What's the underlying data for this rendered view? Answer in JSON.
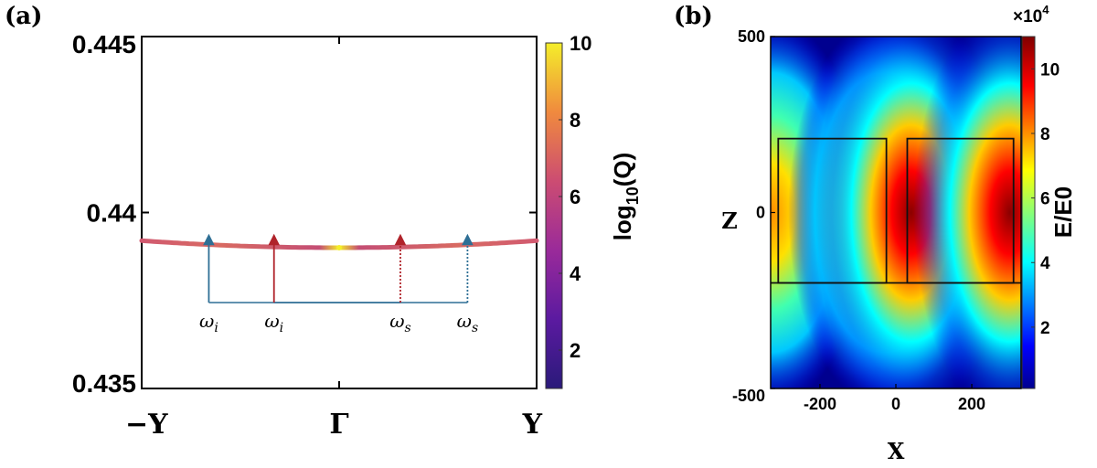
{
  "chart_data": [
    {
      "panel": "(a)",
      "type": "line",
      "x_ticks": [
        "−Y",
        "Γ",
        "Y"
      ],
      "ylim": [
        0.435,
        0.445
      ],
      "y_ticks": [
        "0.435",
        "0.44",
        "0.445"
      ],
      "y_tick_values": [
        0.435,
        0.44,
        0.445
      ],
      "series": [
        {
          "x": [
            -1,
            -0.5,
            0,
            0.5,
            1
          ],
          "y": [
            0.4392,
            0.43915,
            0.439,
            0.43915,
            0.4392
          ]
        }
      ],
      "colorbar": {
        "label": "log10(Q)",
        "label_main": "log",
        "label_sub": "10",
        "label_tail": "(Q)",
        "range": [
          1,
          10
        ],
        "ticks": [
          "2",
          "4",
          "6",
          "8",
          "10"
        ],
        "tick_values": [
          2,
          4,
          6,
          8,
          10
        ],
        "colormap": "plasma"
      },
      "annotations": [
        {
          "symbol": "ω",
          "sub": "i",
          "x": -0.66,
          "arrow_color": "#2e6f95",
          "style": "solid"
        },
        {
          "symbol": "ω",
          "sub": "i",
          "x": -0.33,
          "arrow_color": "#b0232a",
          "style": "solid"
        },
        {
          "symbol": "ω",
          "sub": "s",
          "x": 0.31,
          "arrow_color": "#b0232a",
          "style": "dotted"
        },
        {
          "symbol": "ω",
          "sub": "s",
          "x": 0.65,
          "arrow_color": "#2e6f95",
          "style": "dotted"
        }
      ]
    },
    {
      "panel": "(b)",
      "type": "heatmap",
      "xlabel": "X",
      "ylabel": "Z",
      "xlim": [
        -330,
        330
      ],
      "ylim": [
        -500,
        500
      ],
      "x_ticks": [
        "-200",
        "0",
        "200"
      ],
      "x_tick_values": [
        -200,
        0,
        200
      ],
      "y_ticks": [
        "-500",
        "0",
        "500"
      ],
      "y_tick_values": [
        -500,
        0,
        500
      ],
      "hotspots": [
        {
          "x": -330,
          "z": 0,
          "peak": 6.5
        },
        {
          "x": -30,
          "z": 0,
          "peak": 7.5
        },
        {
          "x": 40,
          "z": 0,
          "peak": 10.5
        },
        {
          "x": 300,
          "z": 0,
          "peak": 10.0
        }
      ],
      "rectangles": [
        {
          "x0": -310,
          "x1": -25,
          "z0": -200,
          "z1": 210
        },
        {
          "x0": 30,
          "x1": 310,
          "z0": -200,
          "z1": 210
        }
      ],
      "colorbar": {
        "label": "E/E0",
        "multiplier": "×10",
        "exponent": "4",
        "range": [
          0.1,
          11
        ],
        "ticks": [
          "2",
          "4",
          "6",
          "8",
          "10"
        ],
        "tick_values": [
          2,
          4,
          6,
          8,
          10
        ],
        "colormap": "jet"
      }
    }
  ]
}
